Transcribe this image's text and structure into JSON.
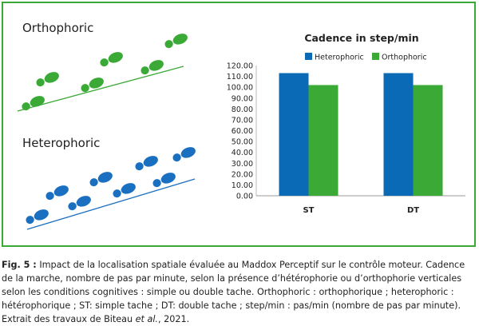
{
  "illustration": {
    "ortho_label": "Orthophoric",
    "hetero_label": "Heterophoric",
    "colors": {
      "ortho": "#3aa935",
      "hetero": "#1a6fc0"
    }
  },
  "chart_data": {
    "type": "bar",
    "title": "Cadence in step/min",
    "categories": [
      "ST",
      "DT"
    ],
    "series": [
      {
        "name": "Heterophoric",
        "color": "#0a6ab6",
        "values": [
          113,
          113
        ]
      },
      {
        "name": "Orthophoric",
        "color": "#3aa935",
        "values": [
          102,
          102
        ]
      }
    ],
    "ylim": [
      0,
      120
    ],
    "yticks": [
      "0.00",
      "10.00",
      "20.00",
      "30.00",
      "40.00",
      "50.00",
      "60.00",
      "70.00",
      "80.00",
      "90.00",
      "100.00",
      "110.00",
      "120.00"
    ],
    "grid": false,
    "legend_position": "top"
  },
  "caption": {
    "label": "Fig. 5 :",
    "text": "Impact de la localisation spatiale évaluée au Maddox Perceptif sur le contrôle moteur. Cadence de la marche, nombre de pas par minute, selon la présence d’hétérophorie ou d’orthophorie verticales selon les conditions cognitives : simple ou double tache. Orthophoric : orthophorique ; heterophoric : hétérophorique ; ST: simple tache ; DT: double tache ; step/min : pas/min (nombre de pas par minute). Extrait des travaux de Biteau ",
    "etal": "et al.",
    "tail": ", 2021."
  }
}
